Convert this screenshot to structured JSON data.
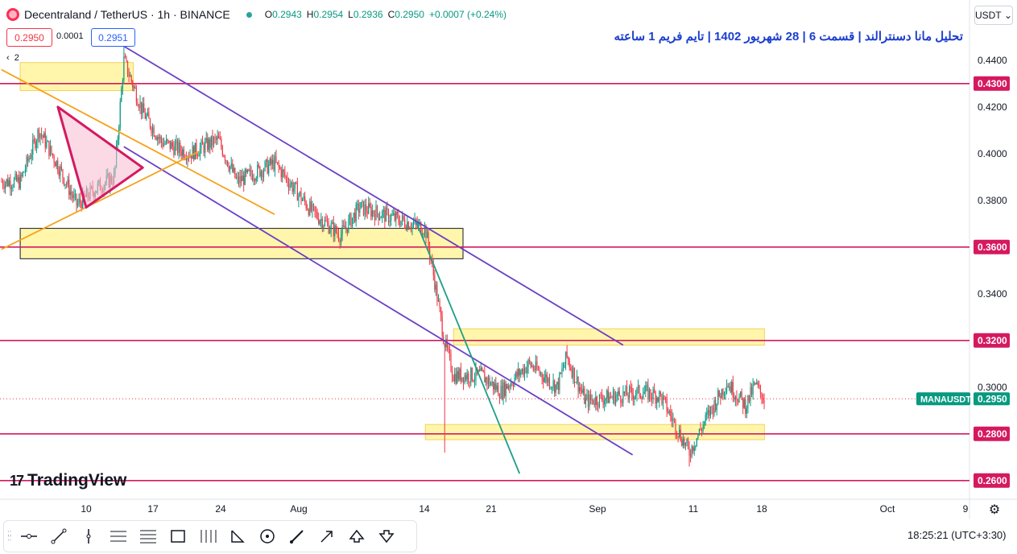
{
  "header": {
    "symbol": "Decentraland / TetherUS · 1h · BINANCE",
    "ohlc": {
      "o": "0.2943",
      "h": "0.2954",
      "l": "0.2936",
      "c": "0.2950",
      "change": "+0.0007 (+0.24%)"
    },
    "bid": "0.2950",
    "spread": "0.0001",
    "ask": "0.2951",
    "currency": "USDT",
    "layers": "2"
  },
  "title": "تحلیل مانا دسنترالند | قسمت 6 | 28 شهریور 1402 | تایم فریم 1 ساعته",
  "watermark": "TradingView",
  "status": {
    "clock": "18:25:21 (UTC+3:30)"
  },
  "toolbar": [
    "crosshair-line-icon",
    "trend-line-icon",
    "vertical-line-icon",
    "parallel-channel-icon",
    "fib-retracement-icon",
    "rectangle-icon",
    "long-short-icon",
    "triangle-pattern-icon",
    "circle-icon",
    "brush-icon",
    "arrow-icon",
    "arrow-up-icon",
    "arrow-down-icon"
  ],
  "colors": {
    "up": "#089981",
    "down": "#f23645",
    "level": "#d5195f",
    "zone": "#fff59d",
    "channel": "#6b3fc6",
    "trend": "#f6a21c",
    "breakdown": "#1e9e86",
    "triangle": "#d5195f"
  },
  "chart_data": {
    "type": "candlestick",
    "symbol": "MANAUSDT",
    "last_price": 0.295,
    "ylim": [
      0.252,
      0.452
    ],
    "y_ticks": [
      "0.4400",
      "0.4200",
      "0.4000",
      "0.3800",
      "0.3400",
      "0.3000"
    ],
    "x_ticks": [
      "10",
      "17",
      "24",
      "Aug",
      "14",
      "21",
      "Sep",
      "11",
      "18",
      "Oct",
      "9"
    ],
    "horizontal_levels": [
      {
        "price": 0.43,
        "label": "0.4300"
      },
      {
        "price": 0.36,
        "label": "0.3600"
      },
      {
        "price": 0.32,
        "label": "0.3200"
      },
      {
        "price": 0.28,
        "label": "0.2800"
      },
      {
        "price": 0.26,
        "label": "0.2600"
      }
    ],
    "price_path": [
      {
        "date": "Jul 3",
        "price": 0.388
      },
      {
        "date": "Jul 5",
        "price": 0.41
      },
      {
        "date": "Jul 7",
        "price": 0.395
      },
      {
        "date": "Jul 9",
        "price": 0.378
      },
      {
        "date": "Jul 11",
        "price": 0.385
      },
      {
        "date": "Jul 13",
        "price": 0.39
      },
      {
        "date": "Jul 14",
        "price": 0.44
      },
      {
        "date": "Jul 16",
        "price": 0.418
      },
      {
        "date": "Jul 18",
        "price": 0.405
      },
      {
        "date": "Jul 21",
        "price": 0.4
      },
      {
        "date": "Jul 24",
        "price": 0.406
      },
      {
        "date": "Jul 26",
        "price": 0.388
      },
      {
        "date": "Jul 30",
        "price": 0.396
      },
      {
        "date": "Aug 3",
        "price": 0.375
      },
      {
        "date": "Aug 6",
        "price": 0.365
      },
      {
        "date": "Aug 8",
        "price": 0.377
      },
      {
        "date": "Aug 12",
        "price": 0.372
      },
      {
        "date": "Aug 15",
        "price": 0.368
      },
      {
        "date": "Aug 16",
        "price": 0.345
      },
      {
        "date": "Aug 17",
        "price": 0.32
      },
      {
        "date": "Aug 18",
        "price": 0.305
      },
      {
        "date": "Aug 21",
        "price": 0.305
      },
      {
        "date": "Aug 23",
        "price": 0.298
      },
      {
        "date": "Aug 26",
        "price": 0.31
      },
      {
        "date": "Aug 29",
        "price": 0.3
      },
      {
        "date": "Aug 30",
        "price": 0.313
      },
      {
        "date": "Sep 1",
        "price": 0.294
      },
      {
        "date": "Sep 4",
        "price": 0.296
      },
      {
        "date": "Sep 7",
        "price": 0.298
      },
      {
        "date": "Sep 9",
        "price": 0.296
      },
      {
        "date": "Sep 11",
        "price": 0.28
      },
      {
        "date": "Sep 12",
        "price": 0.272
      },
      {
        "date": "Sep 14",
        "price": 0.288
      },
      {
        "date": "Sep 16",
        "price": 0.302
      },
      {
        "date": "Sep 18",
        "price": 0.292
      },
      {
        "date": "Sep 19",
        "price": 0.301
      },
      {
        "date": "Sep 20",
        "price": 0.295
      }
    ],
    "wick_spikes": [
      {
        "date": "Jul 14",
        "high": 0.448
      },
      {
        "date": "Aug 17",
        "low": 0.272
      },
      {
        "date": "Aug 30",
        "high": 0.318
      },
      {
        "date": "Sep 12",
        "low": 0.266
      }
    ],
    "zones": [
      {
        "from": "Jul 3",
        "to": "Jul 15",
        "low": 0.427,
        "high": 0.439
      },
      {
        "from": "Jul 3",
        "to": "Aug 19",
        "low": 0.355,
        "high": 0.368
      },
      {
        "from": "Aug 18",
        "to": "Sep 20",
        "low": 0.318,
        "high": 0.325
      },
      {
        "from": "Aug 15",
        "to": "Sep 20",
        "low": 0.2775,
        "high": 0.284
      }
    ],
    "channel_lines": [
      {
        "from": {
          "date": "Jul 14",
          "price": 0.446
        },
        "to": {
          "date": "Sep 5",
          "price": 0.318
        }
      },
      {
        "from": {
          "date": "Jul 14",
          "price": 0.403
        },
        "to": {
          "date": "Sep 6",
          "price": 0.271
        }
      }
    ],
    "trend_lines": [
      {
        "from": {
          "date": "Jul 1",
          "price": 0.436
        },
        "to": {
          "date": "Jul 30",
          "price": 0.374
        },
        "kind": "trend"
      },
      {
        "from": {
          "date": "Jul 1",
          "price": 0.359
        },
        "to": {
          "date": "Jul 22",
          "price": 0.401
        },
        "kind": "trend"
      },
      {
        "from": {
          "date": "Aug 14",
          "price": 0.371
        },
        "to": {
          "date": "Aug 25",
          "price": 0.263
        },
        "kind": "breakdown"
      }
    ],
    "triangle": [
      {
        "date": "Jul 7",
        "price": 0.42
      },
      {
        "date": "Jul 10",
        "price": 0.377
      },
      {
        "date": "Jul 16",
        "price": 0.394
      }
    ]
  }
}
